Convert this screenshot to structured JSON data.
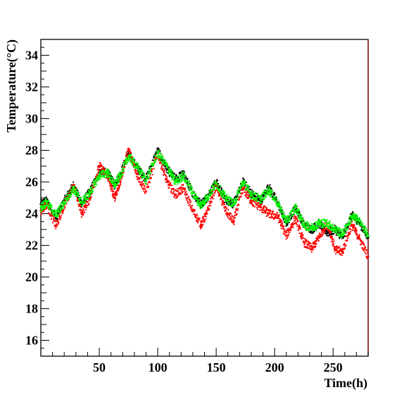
{
  "chart_data": {
    "type": "scatter",
    "title": "",
    "xlabel": "Time(h)",
    "ylabel": "Temperature(°C)",
    "xlim": [
      0,
      280
    ],
    "ylim": [
      15,
      35
    ],
    "x_ticks": [
      50,
      100,
      150,
      200,
      250
    ],
    "y_ticks": [
      16,
      18,
      20,
      22,
      24,
      26,
      28,
      30,
      32,
      34
    ],
    "grid": false,
    "legend": "none",
    "series": [
      {
        "color": "#000000",
        "x": [
          0,
          5,
          13,
          20,
          28,
          35,
          42,
          50,
          57,
          63,
          68,
          75,
          82,
          90,
          100,
          108,
          115,
          122,
          130,
          137,
          142,
          150,
          158,
          165,
          173,
          180,
          188,
          195,
          203,
          210,
          218,
          225,
          232,
          238,
          245,
          252,
          258,
          266,
          272,
          280
        ],
        "y": [
          24.6,
          24.8,
          23.7,
          24.8,
          25.8,
          24.6,
          25.4,
          26.6,
          26.6,
          25.8,
          26.5,
          27.8,
          26.9,
          26.2,
          28.0,
          26.8,
          26.2,
          26.5,
          25.3,
          24.6,
          25.0,
          26.0,
          24.9,
          24.6,
          26.0,
          25.3,
          24.8,
          25.7,
          24.6,
          23.4,
          24.4,
          23.3,
          23.0,
          23.4,
          22.8,
          23.0,
          22.5,
          23.9,
          23.5,
          22.5
        ]
      },
      {
        "color": "#ff0000",
        "x": [
          0,
          5,
          13,
          20,
          28,
          35,
          42,
          50,
          57,
          63,
          68,
          75,
          82,
          90,
          100,
          108,
          115,
          122,
          130,
          137,
          142,
          150,
          158,
          165,
          173,
          180,
          188,
          195,
          203,
          210,
          218,
          225,
          232,
          238,
          245,
          252,
          258,
          266,
          272,
          280
        ],
        "y": [
          24.2,
          24.6,
          23.2,
          24.5,
          25.8,
          24.0,
          25.0,
          27.0,
          26.4,
          25.0,
          26.0,
          28.1,
          26.5,
          25.4,
          27.8,
          26.0,
          25.2,
          25.6,
          24.2,
          23.3,
          24.0,
          25.8,
          24.2,
          23.5,
          25.6,
          24.8,
          24.4,
          24.0,
          23.8,
          22.6,
          23.7,
          22.2,
          21.8,
          22.5,
          23.4,
          21.7,
          21.6,
          23.3,
          22.5,
          21.3
        ]
      },
      {
        "color": "#00ff00",
        "x": [
          0,
          5,
          13,
          20,
          28,
          35,
          42,
          50,
          57,
          63,
          68,
          75,
          82,
          90,
          100,
          108,
          115,
          122,
          130,
          137,
          142,
          150,
          158,
          165,
          173,
          180,
          188,
          195,
          203,
          210,
          218,
          225,
          232,
          238,
          245,
          252,
          258,
          266,
          272,
          280
        ],
        "y": [
          24.4,
          24.7,
          23.9,
          24.7,
          25.6,
          24.7,
          25.3,
          26.4,
          26.6,
          25.8,
          26.4,
          27.6,
          27.0,
          26.1,
          27.8,
          27.0,
          26.0,
          26.4,
          25.3,
          24.5,
          25.0,
          25.9,
          25.0,
          24.6,
          26.0,
          25.2,
          24.9,
          25.5,
          24.6,
          23.5,
          24.4,
          23.3,
          23.1,
          23.4,
          23.4,
          23.0,
          22.7,
          23.8,
          23.6,
          22.6
        ]
      }
    ]
  }
}
